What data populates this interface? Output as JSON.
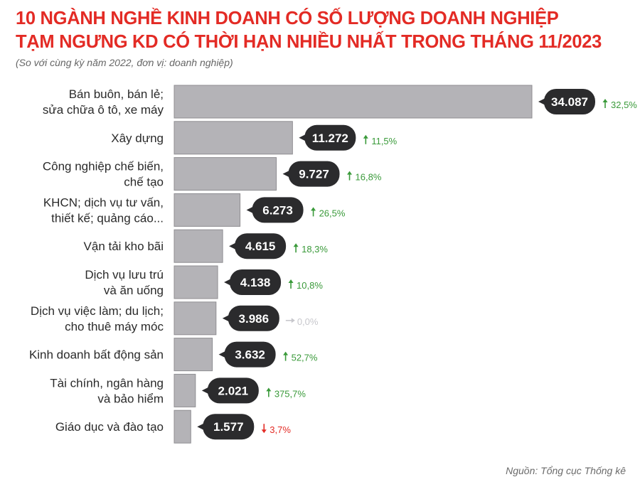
{
  "header": {
    "title_line1": "10 NGÀNH NGHỀ KINH DOANH CÓ SỐ LƯỢNG DOANH NGHIỆP",
    "title_line2": "TẠM NGƯNG KD CÓ THỜI HẠN NHIỀU NHẤT TRONG THÁNG 11/2023",
    "subtitle": "(So với cùng kỳ năm 2022, đơn vị: doanh nghiệp)"
  },
  "footer": {
    "source": "Nguồn: Tổng cục Thống kê"
  },
  "colors": {
    "title": "#e32b25",
    "bar": "#b4b3b7",
    "bar_stroke": "#8f8e92",
    "callout": "#2b2b2d",
    "up": "#3a9a3a",
    "down": "#e32b25",
    "flat": "#c7c7cc"
  },
  "chart_data": {
    "type": "bar",
    "orientation": "horizontal",
    "categories": [
      [
        "Bán buôn, bán lẻ;",
        "sửa chữa ô tô, xe máy"
      ],
      [
        "Xây dựng"
      ],
      [
        "Công nghiệp chế biến,",
        "chế tạo"
      ],
      [
        "KHCN; dịch vụ tư vấn,",
        "thiết kế; quảng cáo..."
      ],
      [
        "Vận tải kho bãi"
      ],
      [
        "Dịch vụ lưu trú",
        "và ăn uống"
      ],
      [
        "Dịch vụ việc làm; du lịch;",
        "cho thuê máy móc"
      ],
      [
        "Kinh doanh bất động sản"
      ],
      [
        "Tài chính, ngân hàng",
        "và bảo hiểm"
      ],
      [
        "Giáo dục và đào tạo"
      ]
    ],
    "values": [
      34087,
      11272,
      9727,
      6273,
      4615,
      4138,
      3986,
      3632,
      2021,
      1577
    ],
    "value_labels": [
      "34.087",
      "11.272",
      "9.727",
      "6.273",
      "4.615",
      "4.138",
      "3.986",
      "3.632",
      "2.021",
      "1.577"
    ],
    "changes": [
      {
        "direction": "up",
        "label": "32,5%"
      },
      {
        "direction": "up",
        "label": "11,5%"
      },
      {
        "direction": "up",
        "label": "16,8%"
      },
      {
        "direction": "up",
        "label": "26,5%"
      },
      {
        "direction": "up",
        "label": "18,3%"
      },
      {
        "direction": "up",
        "label": "10,8%"
      },
      {
        "direction": "flat",
        "label": "0,0%"
      },
      {
        "direction": "up",
        "label": "52,7%"
      },
      {
        "direction": "up",
        "label": "375,7%"
      },
      {
        "direction": "down",
        "label": "3,7%"
      }
    ],
    "xlim": [
      0,
      34087
    ],
    "grid": false,
    "legend": "none"
  }
}
